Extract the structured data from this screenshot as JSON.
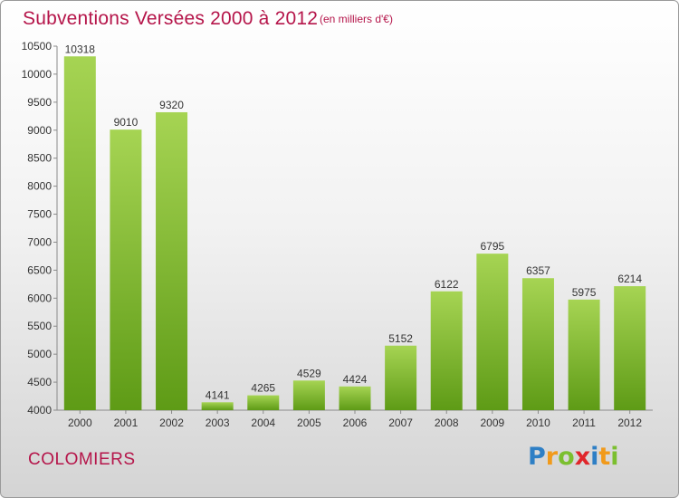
{
  "header": {
    "title": "Subventions Versées 2000 à 2012",
    "subtitle": "(en milliers d'€)"
  },
  "footer": {
    "city": "COLOMIERS",
    "logo": "Proxiti"
  },
  "colors": {
    "title": "#b5154a",
    "bar_light": "#a6d453",
    "bar_dark": "#5e9b16",
    "axis": "#8a8a8a"
  },
  "chart_data": {
    "type": "bar",
    "categories": [
      "2000",
      "2001",
      "2002",
      "2003",
      "2004",
      "2005",
      "2006",
      "2007",
      "2008",
      "2009",
      "2010",
      "2011",
      "2012"
    ],
    "values": [
      10318,
      9010,
      9320,
      4141,
      4265,
      4529,
      4424,
      5152,
      6122,
      6795,
      6357,
      5975,
      6214
    ],
    "ylim": [
      4000,
      10500
    ],
    "yticks": [
      4000,
      4500,
      5000,
      5500,
      6000,
      6500,
      7000,
      7500,
      8000,
      8500,
      9000,
      9500,
      10000,
      10500
    ],
    "data_labels": true,
    "grid": false,
    "legend": "none"
  }
}
